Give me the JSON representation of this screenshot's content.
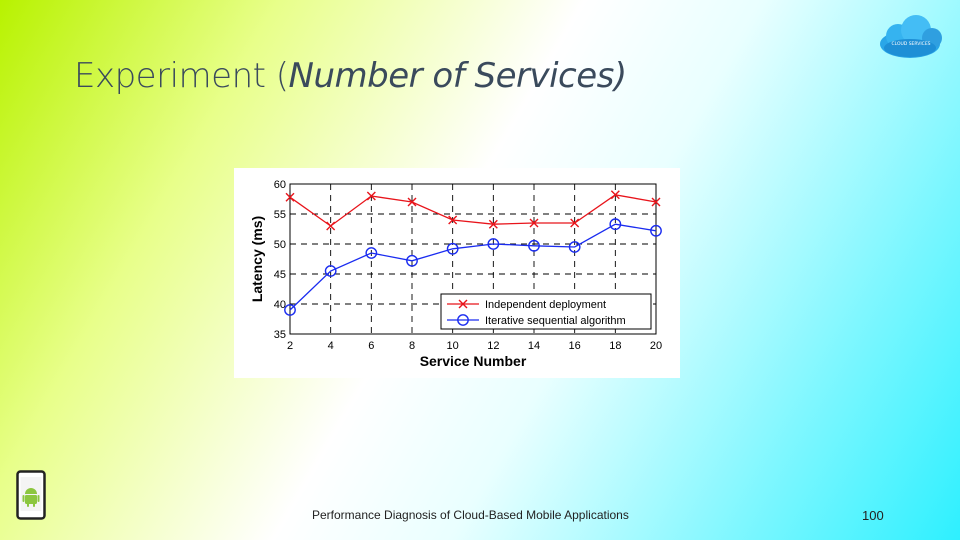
{
  "slide": {
    "title_plain": "Experiment (",
    "title_italic": "Number of Services)",
    "footer": "Performance Diagnosis of Cloud-Based Mobile Applications",
    "page_number": "100",
    "logo_text": "CLOUD SERVICES"
  },
  "colors": {
    "series1": "#e8141b",
    "series2": "#1a2cf0"
  },
  "chart_data": {
    "type": "line",
    "xlabel": "Service Number",
    "ylabel": "Latency (ms)",
    "xlim": [
      2,
      20
    ],
    "ylim": [
      35,
      60
    ],
    "x": [
      2,
      4,
      6,
      8,
      10,
      12,
      14,
      16,
      18,
      20
    ],
    "xticks": [
      "2",
      "4",
      "6",
      "8",
      "10",
      "12",
      "14",
      "16",
      "18",
      "20"
    ],
    "yticks": [
      "35",
      "40",
      "45",
      "50",
      "55",
      "60"
    ],
    "grid": true,
    "legend_position": "bottom-right",
    "series": [
      {
        "name": "Independent deployment",
        "marker": "x",
        "values": [
          57.8,
          53.0,
          58.0,
          57.0,
          54.0,
          53.3,
          53.5,
          53.5,
          58.2,
          57.0
        ]
      },
      {
        "name": "Iterative sequential algorithm",
        "marker": "circle",
        "values": [
          39.0,
          45.5,
          48.5,
          47.2,
          49.2,
          50.0,
          49.7,
          49.5,
          53.3,
          52.2
        ]
      }
    ]
  }
}
